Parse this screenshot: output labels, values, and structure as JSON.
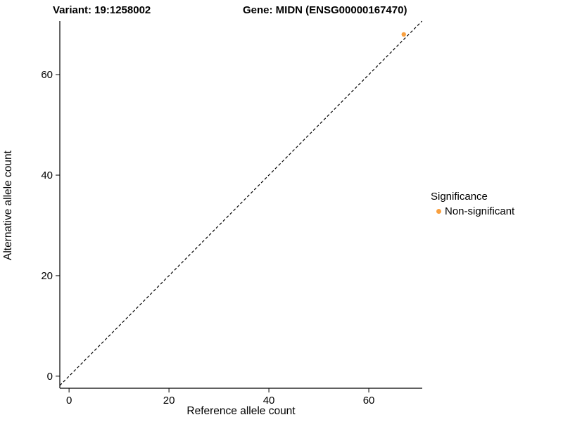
{
  "titles": {
    "variant": "Variant: 19:1258002",
    "gene": "Gene: MIDN (ENSG00000167470)"
  },
  "legend": {
    "title": "Significance",
    "items": [
      {
        "label": "Non-significant",
        "color": "#F9A03F"
      }
    ]
  },
  "chart_data": {
    "type": "scatter",
    "title": "Variant: 19:1258002 | Gene: MIDN (ENSG00000167470)",
    "xlabel": "Reference allele count",
    "ylabel": "Alternative allele count",
    "x_ticks": [
      0,
      20,
      40,
      60
    ],
    "y_ticks": [
      0,
      20,
      40,
      60
    ],
    "xlim": [
      -1.85,
      70.7
    ],
    "ylim": [
      -2.4,
      70.65
    ],
    "grid": false,
    "legend_position": "right",
    "identity_line": {
      "style": "dashed",
      "color": "#000000",
      "from": -1.85,
      "to": 70.65
    },
    "series": [
      {
        "name": "Non-significant",
        "color": "#F9A03F",
        "points": [
          {
            "x": 67,
            "y": 68
          }
        ]
      }
    ]
  }
}
